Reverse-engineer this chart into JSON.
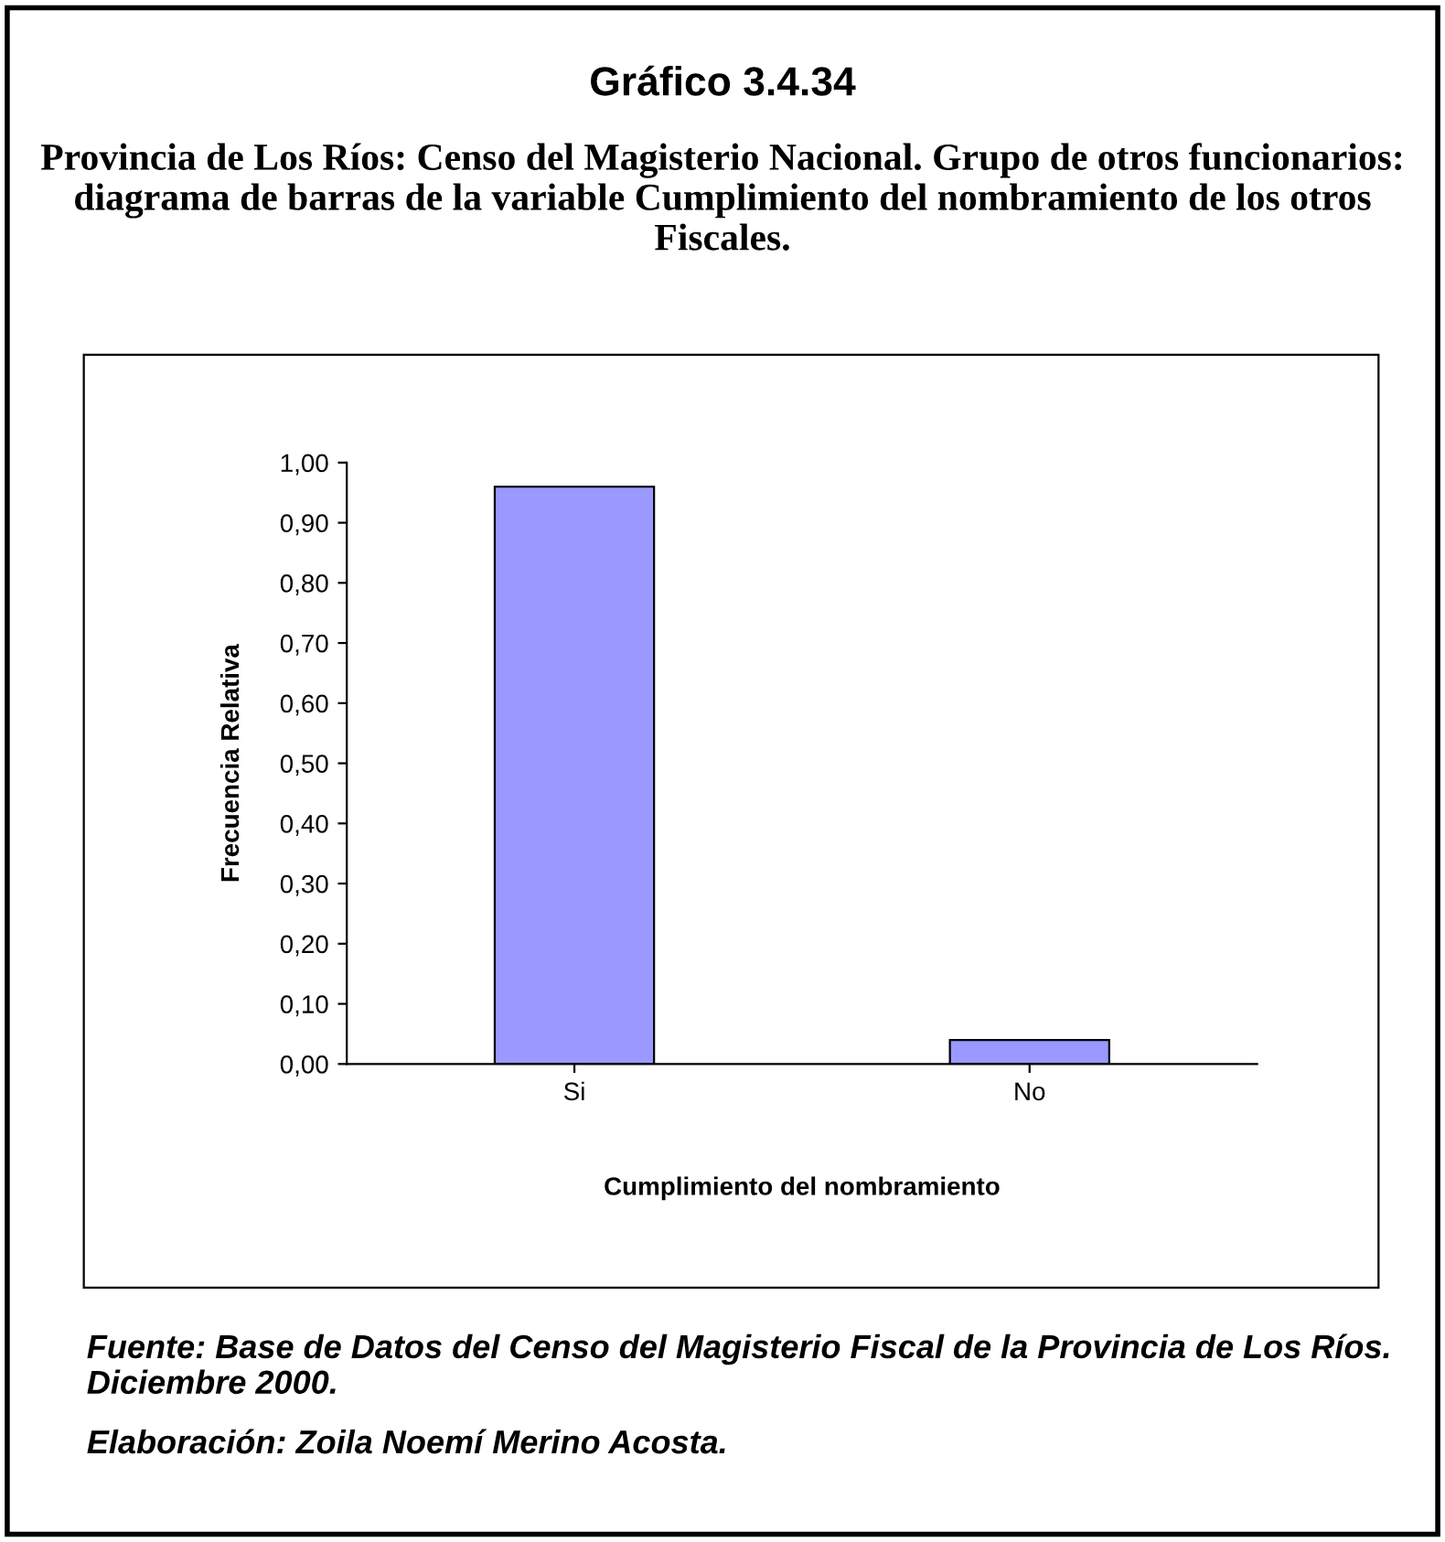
{
  "chart_data": {
    "type": "bar",
    "title": "Gráfico 3.4.34",
    "subtitle": "Provincia de Los Ríos: Censo del Magisterio Nacional. Grupo de otros funcionarios: diagrama de barras de la variable Cumplimiento del nombramiento de los otros Fiscales.",
    "xlabel": "Cumplimiento del nombramiento",
    "ylabel": "Frecuencia Relativa",
    "categories": [
      "Si",
      "No"
    ],
    "values": [
      0.96,
      0.04
    ],
    "color": "#9999ff",
    "ylim": [
      0,
      1
    ],
    "yticks": [
      {
        "value": 0,
        "label": "0,00"
      },
      {
        "value": 0.1,
        "label": "0,10"
      },
      {
        "value": 0.2,
        "label": "0,20"
      },
      {
        "value": 0.3,
        "label": "0,30"
      },
      {
        "value": 0.4,
        "label": "0,40"
      },
      {
        "value": 0.5,
        "label": "0,50"
      },
      {
        "value": 0.6,
        "label": "0,60"
      },
      {
        "value": 0.7,
        "label": "0,70"
      },
      {
        "value": 0.8,
        "label": "0,80"
      },
      {
        "value": 0.9,
        "label": "0,90"
      },
      {
        "value": 1,
        "label": "1,00"
      }
    ],
    "annotations": [
      "Fuente: Base de Datos del Censo del Magisterio Fiscal de la Provincia de Los Ríos. Diciembre 2000.",
      "Elaboración: Zoila Noemí Merino Acosta."
    ]
  }
}
